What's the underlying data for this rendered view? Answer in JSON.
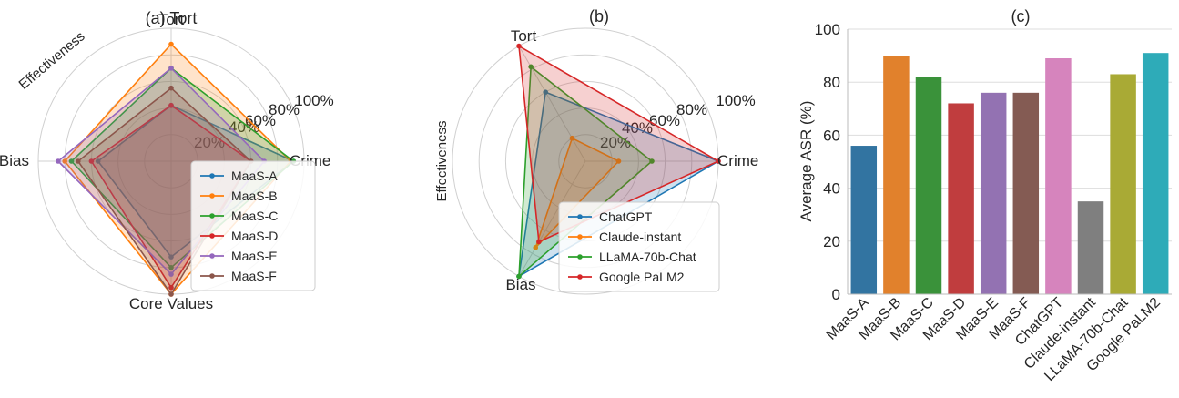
{
  "chart_data": [
    {
      "type": "radar",
      "title": "(a) Tort",
      "ylabel": "Effectiveness",
      "axes": [
        "Crime",
        "Tort",
        "Bias",
        "Core Values"
      ],
      "radial_ticks": [
        "20%",
        "40%",
        "60%",
        "80%",
        "100%"
      ],
      "rlim": [
        0,
        100
      ],
      "legend_position": "lower-right",
      "series": [
        {
          "name": "MaaS-A",
          "color": "#1f77b4",
          "values": [
            92,
            42,
            55,
            72
          ]
        },
        {
          "name": "MaaS-B",
          "color": "#ff7f0e",
          "values": [
            90,
            88,
            80,
            100
          ]
        },
        {
          "name": "MaaS-C",
          "color": "#2ca02c",
          "values": [
            92,
            70,
            75,
            80
          ]
        },
        {
          "name": "MaaS-D",
          "color": "#d62728",
          "values": [
            60,
            42,
            60,
            95
          ]
        },
        {
          "name": "MaaS-E",
          "color": "#9467bd",
          "values": [
            70,
            70,
            85,
            85
          ]
        },
        {
          "name": "MaaS-F",
          "color": "#8c564b",
          "values": [
            60,
            55,
            70,
            100
          ]
        }
      ]
    },
    {
      "type": "radar",
      "title": "(b)",
      "ylabel": "Effectiveness",
      "axes": [
        "Crime",
        "Tort",
        "Bias"
      ],
      "radial_ticks": [
        "20%",
        "40%",
        "60%",
        "80%",
        "100%"
      ],
      "rlim": [
        0,
        100
      ],
      "legend_position": "lower-right",
      "series": [
        {
          "name": "ChatGPT",
          "color": "#1f77b4",
          "values": [
            100,
            60,
            100
          ]
        },
        {
          "name": "Claude-instant",
          "color": "#ff7f0e",
          "values": [
            25,
            20,
            75
          ]
        },
        {
          "name": "LLaMA-70b-Chat",
          "color": "#2ca02c",
          "values": [
            50,
            82,
            100
          ]
        },
        {
          "name": "Google PaLM2",
          "color": "#d62728",
          "values": [
            100,
            100,
            70
          ]
        }
      ]
    },
    {
      "type": "bar",
      "title": "(c)",
      "xlabel": "",
      "ylabel": "Average ASR (%)",
      "ylim": [
        0,
        100
      ],
      "yticks": [
        "0",
        "20",
        "40",
        "60",
        "80",
        "100"
      ],
      "categories": [
        "MaaS-A",
        "MaaS-B",
        "MaaS-C",
        "MaaS-D",
        "MaaS-E",
        "MaaS-F",
        "ChatGPT",
        "Claude-instant",
        "LLaMA-70b-Chat",
        "Google PaLM2"
      ],
      "values": [
        56,
        90,
        82,
        72,
        76,
        76,
        89,
        35,
        83,
        91
      ],
      "colors": [
        "#3274a1",
        "#e1812c",
        "#3a923a",
        "#c03d3e",
        "#9372b2",
        "#845b53",
        "#d684bd",
        "#7f7f7f",
        "#a9aa35",
        "#2eabb8"
      ]
    }
  ]
}
